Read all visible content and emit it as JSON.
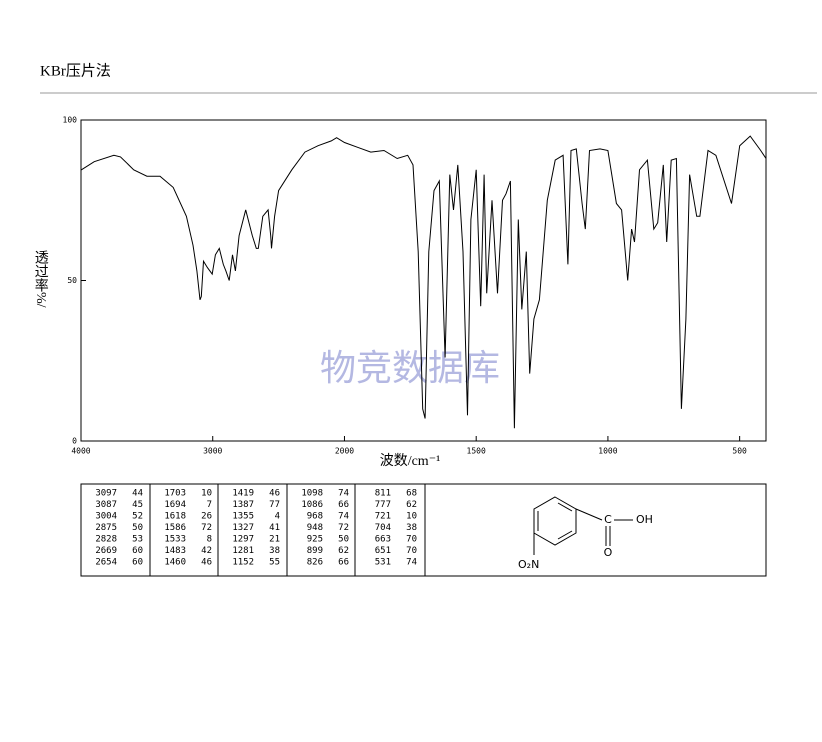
{
  "header": {
    "title": "KBr压片法"
  },
  "chart_data": {
    "type": "line",
    "xlabel": "波数/cm⁻¹",
    "ylabel": "透过率%/",
    "watermark": "物竞数据库",
    "xlim": [
      4000,
      400
    ],
    "xbreak": 2000,
    "xticks": [
      4000,
      3000,
      2000,
      1500,
      1000,
      500
    ],
    "ylim": [
      0,
      100
    ],
    "yticks": [
      0,
      50,
      100
    ],
    "color": "#000000",
    "x": [
      4000,
      3900,
      3750,
      3700,
      3600,
      3500,
      3400,
      3300,
      3200,
      3150,
      3120,
      3097,
      3087,
      3070,
      3040,
      3004,
      2980,
      2950,
      2920,
      2900,
      2875,
      2850,
      2828,
      2800,
      2750,
      2700,
      2669,
      2654,
      2620,
      2580,
      2560,
      2554,
      2530,
      2500,
      2400,
      2300,
      2200,
      2100,
      2060,
      2000,
      1950,
      1900,
      1850,
      1800,
      1760,
      1740,
      1720,
      1703,
      1694,
      1680,
      1660,
      1640,
      1618,
      1600,
      1586,
      1570,
      1550,
      1533,
      1520,
      1500,
      1483,
      1470,
      1460,
      1440,
      1419,
      1400,
      1387,
      1370,
      1355,
      1340,
      1327,
      1310,
      1297,
      1281,
      1260,
      1230,
      1200,
      1170,
      1152,
      1140,
      1120,
      1098,
      1086,
      1070,
      1030,
      1000,
      968,
      948,
      925,
      910,
      899,
      880,
      850,
      826,
      811,
      790,
      777,
      760,
      740,
      721,
      704,
      690,
      663,
      651,
      620,
      590,
      531,
      500,
      460,
      420,
      400
    ],
    "series": [
      {
        "values": [
          84.4,
          87,
          89,
          88.5,
          84.5,
          82.5,
          82.5,
          79,
          70,
          61,
          53,
          44,
          45,
          56,
          54,
          52,
          58,
          60,
          55,
          53,
          50,
          58,
          53,
          64,
          72,
          64,
          60,
          60,
          70,
          72,
          64,
          60,
          70,
          78,
          84.5,
          90,
          92,
          93.5,
          94.5,
          93,
          91.5,
          90,
          90.5,
          88,
          89,
          86,
          59,
          10,
          7,
          59,
          78,
          81,
          26,
          83,
          72,
          86,
          59,
          8,
          69,
          84.5,
          42,
          83,
          46,
          75,
          46,
          75,
          77,
          81,
          4,
          69,
          41,
          59,
          21,
          38,
          44,
          75,
          87.5,
          89,
          55,
          90.5,
          91,
          74,
          66,
          90.5,
          91,
          90.5,
          74,
          72,
          50,
          66,
          62,
          84.5,
          87.5,
          66,
          68,
          86,
          62,
          87.5,
          88,
          10,
          38,
          83,
          70,
          70,
          90.5,
          89,
          74,
          92,
          95,
          90.5,
          88
        ]
      }
    ]
  },
  "peaks": [
    [
      [
        3097,
        44
      ],
      [
        3087,
        45
      ],
      [
        3004,
        52
      ],
      [
        2875,
        50
      ],
      [
        2828,
        53
      ],
      [
        2669,
        60
      ],
      [
        2654,
        60
      ]
    ],
    [
      [
        1703,
        10
      ],
      [
        1694,
        7
      ],
      [
        1618,
        26
      ],
      [
        1586,
        72
      ],
      [
        1533,
        8
      ],
      [
        1483,
        42
      ],
      [
        1460,
        46
      ]
    ],
    [
      [
        1419,
        46
      ],
      [
        1387,
        77
      ],
      [
        1355,
        4
      ],
      [
        1327,
        41
      ],
      [
        1297,
        21
      ],
      [
        1281,
        38
      ],
      [
        1152,
        55
      ]
    ],
    [
      [
        1098,
        74
      ],
      [
        1086,
        66
      ],
      [
        968,
        74
      ],
      [
        948,
        72
      ],
      [
        925,
        50
      ],
      [
        899,
        62
      ],
      [
        826,
        66
      ]
    ],
    [
      [
        811,
        68
      ],
      [
        777,
        62
      ],
      [
        721,
        10
      ],
      [
        704,
        38
      ],
      [
        663,
        70
      ],
      [
        651,
        70
      ],
      [
        531,
        74
      ]
    ]
  ],
  "structure": {
    "oh": "OH",
    "o": "O",
    "nitro": "O₂N"
  }
}
